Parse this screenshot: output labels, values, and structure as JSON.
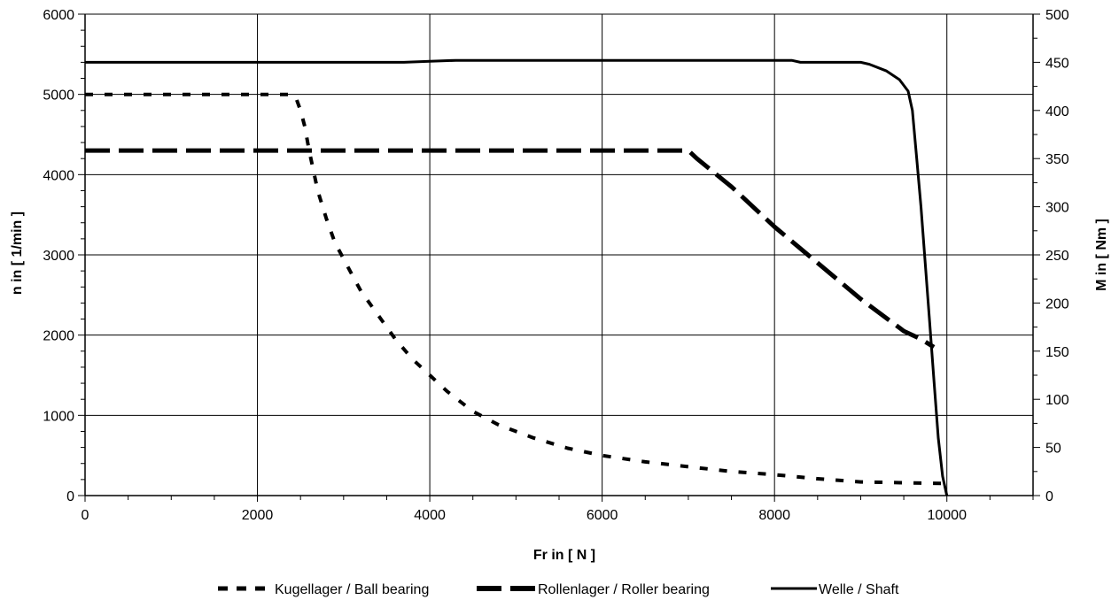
{
  "chart_data": {
    "type": "line",
    "title": "",
    "xlabel": "Fr in [ N ]",
    "ylabel": "n in [ 1/min ]",
    "y2label": "M in [ Nm ]",
    "xlim": [
      0,
      11000
    ],
    "ylim": [
      0,
      6000
    ],
    "y2lim": [
      0,
      500
    ],
    "x_ticks": [
      0,
      2000,
      4000,
      6000,
      8000,
      10000
    ],
    "y_ticks": [
      0,
      1000,
      2000,
      3000,
      4000,
      5000,
      6000
    ],
    "y2_ticks": [
      0,
      50,
      100,
      150,
      200,
      250,
      300,
      350,
      400,
      450,
      500
    ],
    "grid": true,
    "legend_position": "bottom",
    "series": [
      {
        "name": "Kugellager / Ball bearing",
        "axis": "left",
        "style": "short-dash",
        "x": [
          0,
          2400,
          2450,
          2500,
          2550,
          2600,
          2650,
          2700,
          2800,
          2900,
          3000,
          3100,
          3200,
          3400,
          3600,
          3800,
          4000,
          4200,
          4500,
          4800,
          5200,
          5600,
          6000,
          6500,
          7000,
          7500,
          8000,
          8500,
          9000,
          9500,
          10000
        ],
        "y": [
          5000,
          5000,
          4950,
          4800,
          4600,
          4300,
          4050,
          3800,
          3450,
          3150,
          2950,
          2750,
          2550,
          2250,
          1950,
          1700,
          1500,
          1300,
          1050,
          880,
          720,
          590,
          500,
          420,
          360,
          300,
          260,
          210,
          170,
          160,
          150
        ]
      },
      {
        "name": "Rollenlager / Roller bearing",
        "axis": "left",
        "style": "long-dash",
        "x": [
          0,
          7000,
          7100,
          7500,
          8000,
          8500,
          9000,
          9500,
          9700,
          9850
        ],
        "y": [
          4300,
          4300,
          4200,
          3850,
          3350,
          2900,
          2450,
          2050,
          1950,
          1850
        ]
      },
      {
        "name": "Welle / Shaft",
        "axis": "right",
        "style": "solid",
        "x": [
          0,
          3700,
          4000,
          4300,
          8200,
          8300,
          9000,
          9100,
          9300,
          9450,
          9550,
          9600,
          9650,
          9700,
          9750,
          9800,
          9850,
          9900,
          9950,
          10000
        ],
        "y": [
          450,
          450,
          451,
          452,
          452,
          450,
          450,
          448,
          441,
          432,
          420,
          400,
          350,
          300,
          240,
          180,
          120,
          60,
          20,
          0
        ]
      }
    ]
  }
}
